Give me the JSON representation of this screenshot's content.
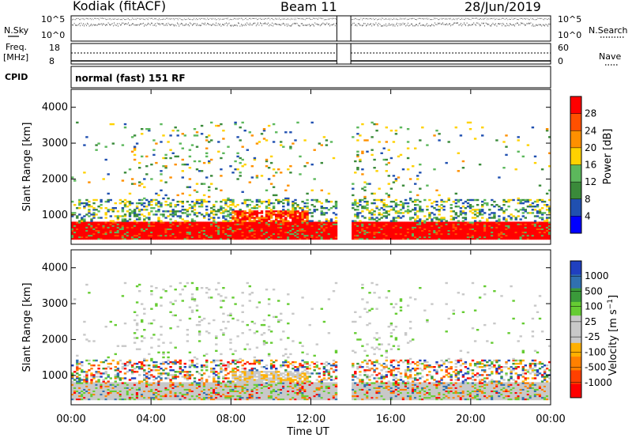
{
  "header": {
    "station": "Kodiak (fitACF)",
    "beam": "Beam 11",
    "date": "28/Jun/2019",
    "cpid_label": "CPID",
    "cpid_value": "normal (fast) 151 RF"
  },
  "colors": {
    "power_scale": [
      "#0000ff",
      "#2050b0",
      "#3a8a3a",
      "#5cb85c",
      "#ffd200",
      "#ff9000",
      "#ff5000",
      "#ff0000"
    ],
    "velocity_scale": [
      "#ff0000",
      "#ff4000",
      "#ff8000",
      "#ffb000",
      "#c8c8c8",
      "#c8c8c8",
      "#66cc33",
      "#3a9a3a",
      "#3070b0",
      "#2040c0"
    ]
  },
  "chart_data": [
    {
      "type": "line",
      "name": "noise-panel",
      "ylabel_left": "N.Sky",
      "ylabel_right": "N.Search",
      "left_ticks": [
        "10^5",
        "10^0"
      ],
      "right_ticks": [
        "10^5",
        "10^0"
      ],
      "data_gap_utc": [
        13.3,
        14.0
      ]
    },
    {
      "type": "line",
      "name": "frequency-panel",
      "ylabel_left": "Freq.",
      "ylabel_left_unit": "[MHz]",
      "ylabel_right": "Nave",
      "left_ticks": [
        "18",
        "8"
      ],
      "right_ticks": [
        "60",
        "0"
      ],
      "data_gap_utc": [
        13.3,
        14.0
      ]
    },
    {
      "type": "heatmap",
      "name": "power",
      "ylabel": "Slant Range [km]",
      "y_ticks": [
        "4000",
        "3000",
        "2000",
        "1000"
      ],
      "y_tick_values": [
        4000,
        3000,
        2000,
        1000
      ],
      "ylim": [
        180,
        4500
      ],
      "xlim_utc": [
        0,
        24
      ],
      "colorbar_label": "Power [dB]",
      "colorbar_ticks": [
        "28",
        "24",
        "20",
        "16",
        "12",
        "8",
        "4"
      ],
      "data_gap_utc": [
        13.3,
        14.0
      ],
      "main_band_km": [
        300,
        800
      ],
      "enhanced_region": {
        "utc": [
          8.0,
          11.8
        ],
        "km": [
          600,
          1100
        ]
      },
      "scattered_echo_max_km": 3600
    },
    {
      "type": "heatmap",
      "name": "velocity",
      "ylabel": "Slant Range [km]",
      "y_ticks": [
        "4000",
        "3000",
        "2000",
        "1000"
      ],
      "y_tick_values": [
        4000,
        3000,
        2000,
        1000
      ],
      "ylim": [
        180,
        4500
      ],
      "xlim_utc": [
        0,
        24
      ],
      "colorbar_label": "Velocity [m s^-1]",
      "colorbar_ticks": [
        "1000",
        "500",
        "100",
        "25",
        "-25",
        "-100",
        "-500",
        "-1000"
      ],
      "data_gap_utc": [
        13.3,
        14.0
      ],
      "main_band_km": [
        300,
        800
      ]
    }
  ],
  "x_axis": {
    "label": "Time UT",
    "ticks": [
      "00:00",
      "04:00",
      "08:00",
      "12:00",
      "16:00",
      "20:00",
      "00:00"
    ],
    "tick_values_utc": [
      0,
      4,
      8,
      12,
      16,
      20,
      24
    ]
  }
}
